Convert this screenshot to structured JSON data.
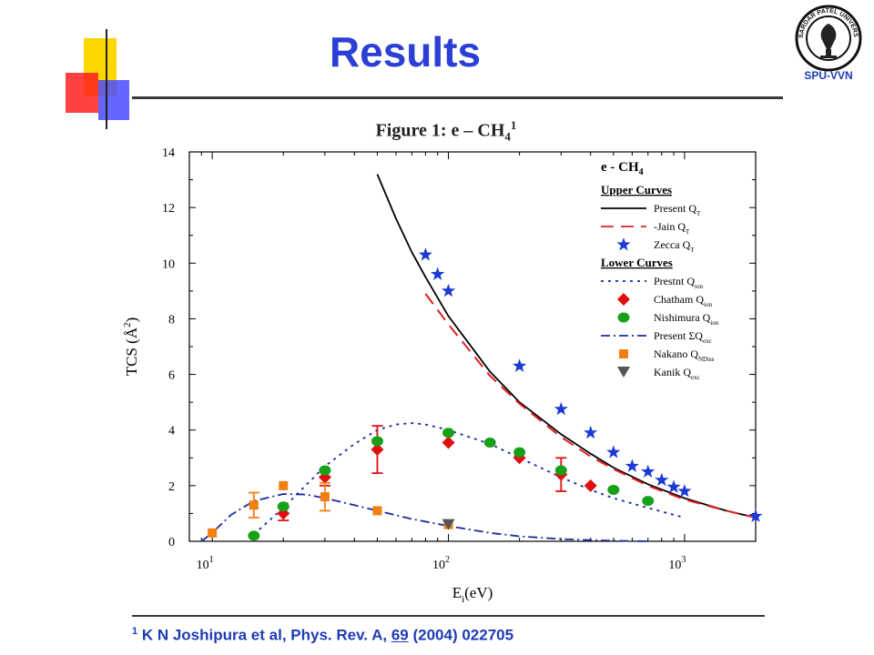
{
  "slide": {
    "title": "Results",
    "logo_label": "SPU-VVN",
    "logo_ring_text": "SARDAR PATEL UNIVERSITY",
    "figure_caption": {
      "prefix": "Figure 1: e – CH",
      "sub": "4",
      "sup": "1"
    },
    "reference": {
      "sup": "1",
      "text": " K N Joshipura et al, Phys. Rev. A, ",
      "volume": "69",
      "rest": " (2004) 022705"
    },
    "colors": {
      "title": "#2b3fd6",
      "reference": "#1f3bb3",
      "deco_yellow": "#ffd700",
      "deco_red": "#ff2020",
      "deco_blue": "#4a4aff"
    }
  },
  "chart_data": {
    "type": "scatter",
    "title": "e - CH4",
    "xlabel": "Ei(eV)",
    "ylabel": "TCS (Å2)",
    "xscale": "log",
    "xlim": [
      8,
      2000
    ],
    "ylim": [
      0,
      14
    ],
    "yticks": [
      0,
      2,
      4,
      6,
      8,
      10,
      12,
      14
    ],
    "xticks": [
      {
        "value": 10,
        "base": "10",
        "exp": "1"
      },
      {
        "value": 100,
        "base": "10",
        "exp": "2"
      },
      {
        "value": 1000,
        "base": "10",
        "exp": "3"
      }
    ],
    "legend_position": "top-right",
    "legend_groups": {
      "upper": "Upper Curves",
      "lower": "Lower Curves"
    },
    "series": [
      {
        "name": "Present QT",
        "label": "Present Q",
        "sub": "T",
        "group": "upper",
        "kind": "line",
        "color": "#000000",
        "style": "solid",
        "x": [
          50,
          60,
          70,
          80,
          100,
          150,
          200,
          300,
          400,
          500,
          700,
          1000,
          1500,
          2000
        ],
        "y": [
          13.2,
          11.6,
          10.4,
          9.5,
          8.1,
          6.1,
          5.0,
          3.85,
          3.15,
          2.65,
          2.05,
          1.55,
          1.1,
          0.85
        ]
      },
      {
        "name": "Jain QT",
        "label": "-Jain Q",
        "sub": "T",
        "group": "upper",
        "kind": "line",
        "color": "#e02020",
        "style": "dashed",
        "x": [
          80,
          100,
          150,
          200,
          300,
          400,
          500,
          700,
          1000,
          1500,
          2000
        ],
        "y": [
          8.9,
          7.8,
          5.95,
          4.95,
          3.75,
          3.05,
          2.6,
          2.0,
          1.5,
          1.1,
          0.85
        ]
      },
      {
        "name": "Zecca QT",
        "label": "Zecca Q",
        "sub": "T",
        "group": "upper",
        "kind": "marker",
        "marker": "star",
        "color": "#1a3ad6",
        "x": [
          80,
          90,
          100,
          200,
          300,
          400,
          500,
          600,
          700,
          800,
          900,
          1000,
          2000
        ],
        "y": [
          10.3,
          9.6,
          9.0,
          6.3,
          4.75,
          3.9,
          3.2,
          2.7,
          2.5,
          2.2,
          1.95,
          1.8,
          0.9
        ]
      },
      {
        "name": "Prestnt Qion",
        "label": "Prestnt Q",
        "sub": "ion",
        "group": "lower",
        "kind": "line",
        "color": "#1a2aa0",
        "style": "dotted",
        "x": [
          15,
          20,
          30,
          40,
          50,
          60,
          70,
          80,
          100,
          150,
          200,
          300,
          400,
          500,
          700,
          1000
        ],
        "y": [
          0.25,
          1.2,
          2.7,
          3.5,
          4.0,
          4.2,
          4.25,
          4.2,
          4.0,
          3.5,
          3.0,
          2.3,
          1.85,
          1.55,
          1.2,
          0.85
        ]
      },
      {
        "name": "Chatham Qion",
        "label": "Chatham Q",
        "sub": "ion",
        "group": "lower",
        "kind": "marker",
        "marker": "diamond",
        "color": "#e01010",
        "x": [
          20,
          30,
          50,
          100,
          200,
          300,
          400
        ],
        "y": [
          1.0,
          2.3,
          3.3,
          3.55,
          3.0,
          2.4,
          2.0
        ],
        "errors": [
          0.25,
          0.3,
          0.85,
          0,
          0,
          0.6,
          0
        ]
      },
      {
        "name": "Nishimura Qion",
        "label": "Nishimura Q",
        "sub": "ion",
        "group": "lower",
        "kind": "marker",
        "marker": "circle",
        "color": "#18a018",
        "x": [
          15,
          20,
          30,
          50,
          100,
          150,
          200,
          300,
          500,
          700
        ],
        "y": [
          0.2,
          1.25,
          2.55,
          3.6,
          3.9,
          3.55,
          3.2,
          2.55,
          1.85,
          1.45
        ]
      },
      {
        "name": "Present ΣQexc",
        "label": "Present ΣQ",
        "sub": "exc",
        "group": "lower",
        "kind": "line",
        "color": "#1a2aa0",
        "style": "dashdot",
        "x": [
          9,
          10,
          12,
          15,
          20,
          25,
          30,
          40,
          50,
          70,
          100,
          150,
          200,
          300,
          500,
          700
        ],
        "y": [
          0.0,
          0.3,
          0.95,
          1.45,
          1.7,
          1.68,
          1.55,
          1.3,
          1.1,
          0.8,
          0.55,
          0.3,
          0.18,
          0.08,
          0.02,
          0.0
        ]
      },
      {
        "name": "Nakano QNDiss",
        "label": "Nakano Q",
        "sub": "NDiss",
        "group": "lower",
        "kind": "marker",
        "marker": "square",
        "color": "#f08010",
        "x": [
          10,
          15,
          20,
          30,
          50,
          100
        ],
        "y": [
          0.3,
          1.3,
          2.0,
          1.6,
          1.1,
          0.6
        ],
        "errors": [
          0,
          0.45,
          0,
          0.5,
          0,
          0
        ]
      },
      {
        "name": "Kanik Qexc",
        "label": "Kanik Q",
        "sub": "exc",
        "group": "lower",
        "kind": "marker",
        "marker": "triangle-down",
        "color": "#555555",
        "x": [
          100
        ],
        "y": [
          0.6
        ]
      }
    ]
  }
}
